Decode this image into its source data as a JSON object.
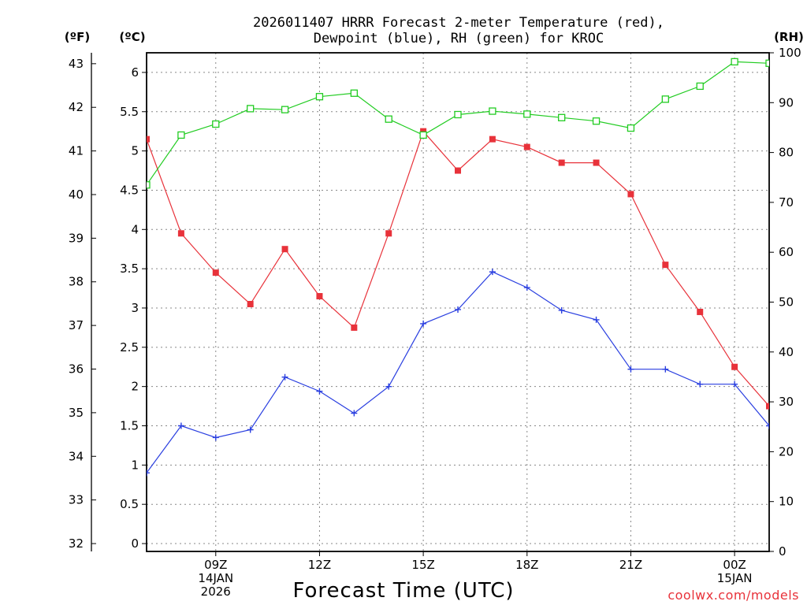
{
  "chart_data": {
    "type": "line",
    "title_line1": "2026011407 HRRR Forecast 2-meter Temperature (red),",
    "title_line2": "Dewpoint (blue), RH (green) for KROC",
    "xlabel": "Forecast Time (UTC)",
    "credit": "coolwx.com/models",
    "unit_f": "(ºF)",
    "unit_c": "(ºC)",
    "unit_rh": "(RH)",
    "x_hours": [
      7,
      8,
      9,
      10,
      11,
      12,
      13,
      14,
      15,
      16,
      17,
      18,
      19,
      20,
      21,
      22,
      23,
      24,
      25
    ],
    "xlim": [
      7,
      25
    ],
    "x_ticks": [
      {
        "hour": 9,
        "lines": [
          "09Z",
          "14JAN",
          "2026"
        ]
      },
      {
        "hour": 12,
        "lines": [
          "12Z"
        ]
      },
      {
        "hour": 15,
        "lines": [
          "15Z"
        ]
      },
      {
        "hour": 18,
        "lines": [
          "18Z"
        ]
      },
      {
        "hour": 21,
        "lines": [
          "21Z"
        ]
      },
      {
        "hour": 24,
        "lines": [
          "00Z",
          "15JAN"
        ]
      }
    ],
    "y_celsius": {
      "range": [
        -0.1,
        6.25
      ],
      "ticks": [
        "0",
        "0.5",
        "1",
        "1.5",
        "2",
        "2.5",
        "3",
        "3.5",
        "4",
        "4.5",
        "5",
        "5.5",
        "6"
      ]
    },
    "y_fahrenheit": {
      "ticks": [
        "32",
        "33",
        "34",
        "35",
        "36",
        "37",
        "38",
        "39",
        "40",
        "41",
        "42",
        "43"
      ]
    },
    "y_rh": {
      "range": [
        0,
        100
      ],
      "ticks": [
        "0",
        "10",
        "20",
        "30",
        "40",
        "50",
        "60",
        "70",
        "80",
        "90",
        "100"
      ]
    },
    "series": [
      {
        "name": "Temperature",
        "axis": "C",
        "color": "#e8323a",
        "marker": "filled-square",
        "values": [
          5.15,
          3.95,
          3.45,
          3.05,
          3.75,
          3.15,
          2.75,
          3.95,
          5.25,
          4.75,
          5.15,
          5.05,
          4.85,
          4.85,
          4.45,
          3.55,
          2.95,
          2.25,
          1.75
        ]
      },
      {
        "name": "Dewpoint",
        "axis": "C",
        "color": "#2a3fe0",
        "marker": "plus",
        "values": [
          0.9,
          1.5,
          1.35,
          1.45,
          2.12,
          1.94,
          1.66,
          2.0,
          2.8,
          2.98,
          3.46,
          3.26,
          2.97,
          2.85,
          2.22,
          2.22,
          2.03,
          2.03,
          1.5
        ]
      },
      {
        "name": "RH",
        "axis": "RH",
        "color": "#22cc22",
        "marker": "open-square",
        "values": [
          73.5,
          83.5,
          85.7,
          88.8,
          88.6,
          91.2,
          91.9,
          86.7,
          83.5,
          87.6,
          88.3,
          87.7,
          87.0,
          86.3,
          84.9,
          90.7,
          93.3,
          98.2,
          97.9
        ]
      }
    ]
  }
}
